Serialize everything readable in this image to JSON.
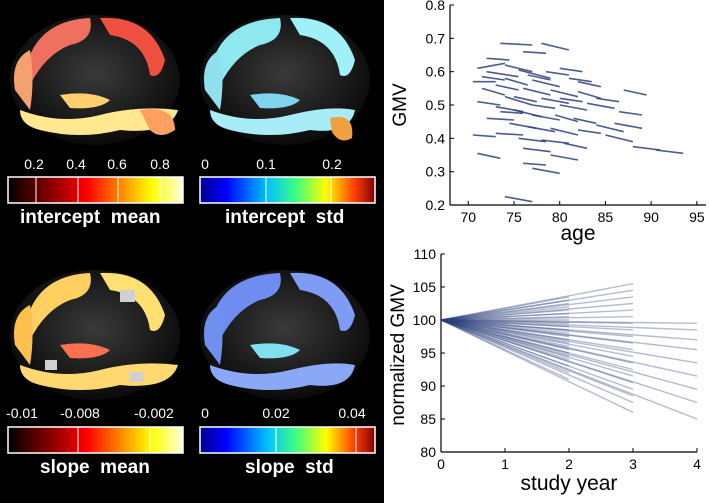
{
  "colorbars": [
    {
      "id": "intercept-mean",
      "label": "intercept  mean",
      "ticks": [
        "0.2",
        "0.4",
        "0.6",
        "0.8"
      ],
      "colormap": "hot"
    },
    {
      "id": "intercept-std",
      "label": "intercept  std",
      "ticks": [
        "0",
        "0.1",
        "0.2"
      ],
      "colormap": "jet"
    },
    {
      "id": "slope-mean",
      "label": "slope  mean",
      "ticks": [
        "-0.01",
        "-0.008",
        "-0.002"
      ],
      "colormap": "hot"
    },
    {
      "id": "slope-std",
      "label": "slope  std",
      "ticks": [
        "0",
        "0.02",
        "0.04"
      ],
      "colormap": "jet"
    }
  ],
  "colors": {
    "line": "#2b3f7a",
    "hot": [
      "#000000",
      "#8b0000",
      "#ff0000",
      "#ff8c00",
      "#ffff00",
      "#ffffcc"
    ],
    "jet": [
      "#00008f",
      "#0000ff",
      "#00bfff",
      "#40ff80",
      "#ffff00",
      "#ff4000",
      "#800000"
    ]
  },
  "chart_data": [
    {
      "type": "line",
      "title": "",
      "xlabel": "age",
      "ylabel": "GMV",
      "xlim": [
        68,
        96
      ],
      "ylim": [
        0.2,
        0.8
      ],
      "xticks": [
        "70",
        "75",
        "80",
        "85",
        "90",
        "95"
      ],
      "yticks": [
        "0.2",
        "0.3",
        "0.4",
        "0.5",
        "0.6",
        "0.7",
        "0.8"
      ],
      "description_series": "individual subject trajectories (short line segments)",
      "segments": [
        [
          73.5,
          0.685,
          77,
          0.68
        ],
        [
          78,
          0.685,
          81,
          0.665
        ],
        [
          71,
          0.61,
          74,
          0.625
        ],
        [
          72,
          0.6,
          75.5,
          0.585
        ],
        [
          74,
          0.62,
          77,
          0.6
        ],
        [
          75.5,
          0.605,
          79,
          0.58
        ],
        [
          80,
          0.61,
          82.5,
          0.6
        ],
        [
          77,
          0.575,
          80,
          0.555
        ],
        [
          70.5,
          0.57,
          73,
          0.57
        ],
        [
          73,
          0.56,
          75.5,
          0.545
        ],
        [
          76,
          0.55,
          79,
          0.53
        ],
        [
          79,
          0.545,
          82,
          0.525
        ],
        [
          82,
          0.54,
          84.5,
          0.52
        ],
        [
          71.5,
          0.55,
          74,
          0.53
        ],
        [
          74,
          0.525,
          77,
          0.5
        ],
        [
          78,
          0.52,
          81,
          0.505
        ],
        [
          80,
          0.5,
          83,
          0.485
        ],
        [
          83,
          0.505,
          86,
          0.49
        ],
        [
          71,
          0.51,
          73.5,
          0.5
        ],
        [
          73,
          0.495,
          76,
          0.48
        ],
        [
          75,
          0.485,
          78,
          0.465
        ],
        [
          77,
          0.47,
          80,
          0.455
        ],
        [
          79.5,
          0.47,
          82,
          0.45
        ],
        [
          81.5,
          0.46,
          84,
          0.445
        ],
        [
          72,
          0.46,
          75,
          0.455
        ],
        [
          74.5,
          0.445,
          77.5,
          0.43
        ],
        [
          76.5,
          0.435,
          79.5,
          0.42
        ],
        [
          79,
          0.43,
          82,
          0.41
        ],
        [
          82,
          0.425,
          84.5,
          0.415
        ],
        [
          84,
          0.44,
          87,
          0.42
        ],
        [
          86,
          0.445,
          89,
          0.43
        ],
        [
          73,
          0.415,
          76,
          0.41
        ],
        [
          75.5,
          0.4,
          78.5,
          0.39
        ],
        [
          78,
          0.395,
          81,
          0.385
        ],
        [
          80.5,
          0.385,
          83,
          0.37
        ],
        [
          76,
          0.37,
          79,
          0.36
        ],
        [
          70.5,
          0.41,
          73,
          0.405
        ],
        [
          85,
          0.41,
          88,
          0.39
        ],
        [
          88,
          0.375,
          91,
          0.365
        ],
        [
          90.5,
          0.365,
          93.5,
          0.355
        ],
        [
          71,
          0.355,
          73.5,
          0.34
        ],
        [
          79,
          0.35,
          82,
          0.335
        ],
        [
          77,
          0.31,
          80,
          0.295
        ],
        [
          74,
          0.225,
          77,
          0.21
        ],
        [
          76,
          0.325,
          78.5,
          0.32
        ],
        [
          72,
          0.64,
          74.5,
          0.635
        ],
        [
          76,
          0.66,
          78.5,
          0.655
        ],
        [
          81,
          0.58,
          83.5,
          0.57
        ],
        [
          84,
          0.52,
          86.5,
          0.51
        ],
        [
          86.5,
          0.48,
          89,
          0.47
        ],
        [
          87,
          0.545,
          89.5,
          0.53
        ],
        [
          77,
          0.5,
          79.5,
          0.49
        ],
        [
          73.5,
          0.48,
          76,
          0.475
        ],
        [
          75,
          0.525,
          77.5,
          0.51
        ],
        [
          71.5,
          0.585,
          74,
          0.575
        ],
        [
          78.5,
          0.6,
          81,
          0.59
        ],
        [
          74,
          0.58,
          76.5,
          0.56
        ],
        [
          76.5,
          0.59,
          79,
          0.575
        ],
        [
          80,
          0.52,
          82.5,
          0.51
        ],
        [
          82,
          0.57,
          84.5,
          0.555
        ]
      ]
    },
    {
      "type": "line",
      "title": "",
      "xlabel": "study year",
      "ylabel": "normalized  GMV",
      "xlim": [
        0,
        4
      ],
      "ylim": [
        80,
        110
      ],
      "xticks": [
        "0",
        "1",
        "2",
        "3",
        "4"
      ],
      "yticks": [
        "80",
        "85",
        "90",
        "95",
        "100",
        "105",
        "110"
      ],
      "origin": [
        0,
        100
      ],
      "description_series": "normalized trajectories from 100 at year 0",
      "endpoints": [
        [
          2,
          103.5
        ],
        [
          2,
          103
        ],
        [
          2,
          102.5
        ],
        [
          2,
          102
        ],
        [
          2,
          101.5
        ],
        [
          2,
          101
        ],
        [
          2,
          100.5
        ],
        [
          2,
          100
        ],
        [
          2,
          99.5
        ],
        [
          2,
          99
        ],
        [
          2,
          98.5
        ],
        [
          2,
          98
        ],
        [
          2,
          97.5
        ],
        [
          2,
          97
        ],
        [
          2,
          96.5
        ],
        [
          2,
          96
        ],
        [
          2,
          95.5
        ],
        [
          2,
          95
        ],
        [
          2,
          94.5
        ],
        [
          2,
          94
        ],
        [
          2,
          93
        ],
        [
          2,
          92
        ],
        [
          2,
          91
        ],
        [
          3,
          105.5
        ],
        [
          3,
          104.5
        ],
        [
          3,
          103.5
        ],
        [
          3,
          102.5
        ],
        [
          3,
          101.5
        ],
        [
          3,
          100.5
        ],
        [
          3,
          99.5
        ],
        [
          3,
          98.5
        ],
        [
          3,
          97.5
        ],
        [
          3,
          96.5
        ],
        [
          3,
          95.5
        ],
        [
          3,
          94.5
        ],
        [
          3,
          93.5
        ],
        [
          3,
          92.5
        ],
        [
          3,
          91.5
        ],
        [
          3,
          90.5
        ],
        [
          3,
          89.5
        ],
        [
          3,
          88.5
        ],
        [
          3,
          87.5
        ],
        [
          3,
          86
        ],
        [
          4,
          99.5
        ],
        [
          4,
          98.5
        ],
        [
          4,
          97
        ],
        [
          4,
          95.5
        ],
        [
          4,
          93.5
        ],
        [
          4,
          91.5
        ],
        [
          4,
          89.5
        ],
        [
          4,
          87.5
        ],
        [
          4,
          85
        ]
      ]
    }
  ]
}
